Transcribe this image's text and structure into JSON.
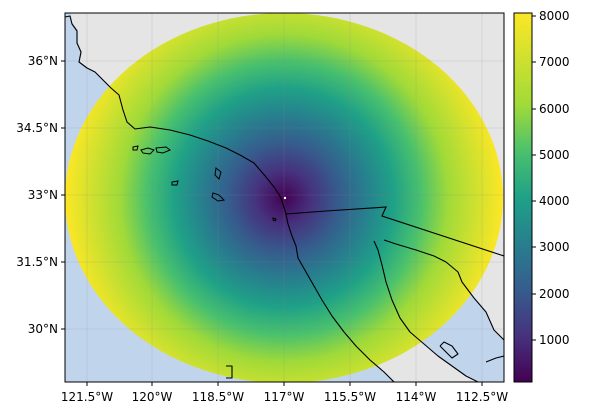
{
  "map": {
    "x_ticks": [
      "121.5°W",
      "120°W",
      "118.5°W",
      "117°W",
      "115.5°W",
      "114°W",
      "112.5°W"
    ],
    "y_ticks": [
      "36°N",
      "34.5°N",
      "33°N",
      "31.5°N",
      "30°N"
    ],
    "center": "32.8°N 117.1°W",
    "extent": {
      "lon": [
        -122,
        -112.1
      ],
      "lat": [
        28.9,
        37.1
      ]
    },
    "colors": {
      "ocean": "#c0d4ec",
      "outside": "#e5e5e5",
      "coast": "#000000"
    }
  },
  "colorbar": {
    "colormap": "viridis",
    "range": [
      50,
      8050
    ],
    "ticks": [
      "1000",
      "2000",
      "3000",
      "4000",
      "5000",
      "6000",
      "7000",
      "8000"
    ]
  }
}
